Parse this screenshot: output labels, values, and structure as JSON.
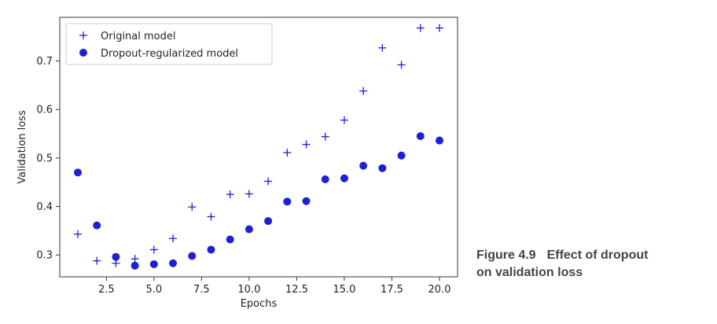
{
  "caption": {
    "figure_number": "Figure 4.9",
    "line1": "Effect of dropout",
    "line2": "on validation loss"
  },
  "colors": {
    "marker": "#1f1fd6",
    "axis": "#333333"
  },
  "chart_data": {
    "type": "scatter",
    "title": "",
    "xlabel": "Epochs",
    "ylabel": "Validation loss",
    "xlim": [
      0.05,
      20.95
    ],
    "ylim": [
      0.255,
      0.79
    ],
    "xticks": [
      2.5,
      5.0,
      7.5,
      10.0,
      12.5,
      15.0,
      17.5,
      20.0
    ],
    "xtick_labels": [
      "2.5",
      "5.0",
      "7.5",
      "10.0",
      "12.5",
      "15.0",
      "17.5",
      "20.0"
    ],
    "yticks": [
      0.3,
      0.4,
      0.5,
      0.6,
      0.7
    ],
    "ytick_labels": [
      "0.3",
      "0.4",
      "0.5",
      "0.6",
      "0.7"
    ],
    "legend_position": "top-left",
    "series": [
      {
        "name": "Original model",
        "marker": "plus",
        "x": [
          1,
          2,
          3,
          4,
          5,
          6,
          7,
          8,
          9,
          10,
          11,
          12,
          13,
          14,
          15,
          16,
          17,
          18,
          19,
          20
        ],
        "y": [
          0.343,
          0.288,
          0.283,
          0.292,
          0.311,
          0.334,
          0.399,
          0.379,
          0.425,
          0.426,
          0.452,
          0.511,
          0.528,
          0.544,
          0.578,
          0.638,
          0.727,
          0.692,
          0.768,
          0.768
        ]
      },
      {
        "name": "Dropout-regularized model",
        "marker": "circle",
        "x": [
          1,
          2,
          3,
          4,
          5,
          6,
          7,
          8,
          9,
          10,
          11,
          12,
          13,
          14,
          15,
          16,
          17,
          18,
          19,
          20
        ],
        "y": [
          0.47,
          0.361,
          0.296,
          0.278,
          0.281,
          0.283,
          0.298,
          0.311,
          0.332,
          0.353,
          0.37,
          0.41,
          0.411,
          0.456,
          0.458,
          0.484,
          0.479,
          0.505,
          0.545,
          0.536
        ]
      }
    ]
  }
}
